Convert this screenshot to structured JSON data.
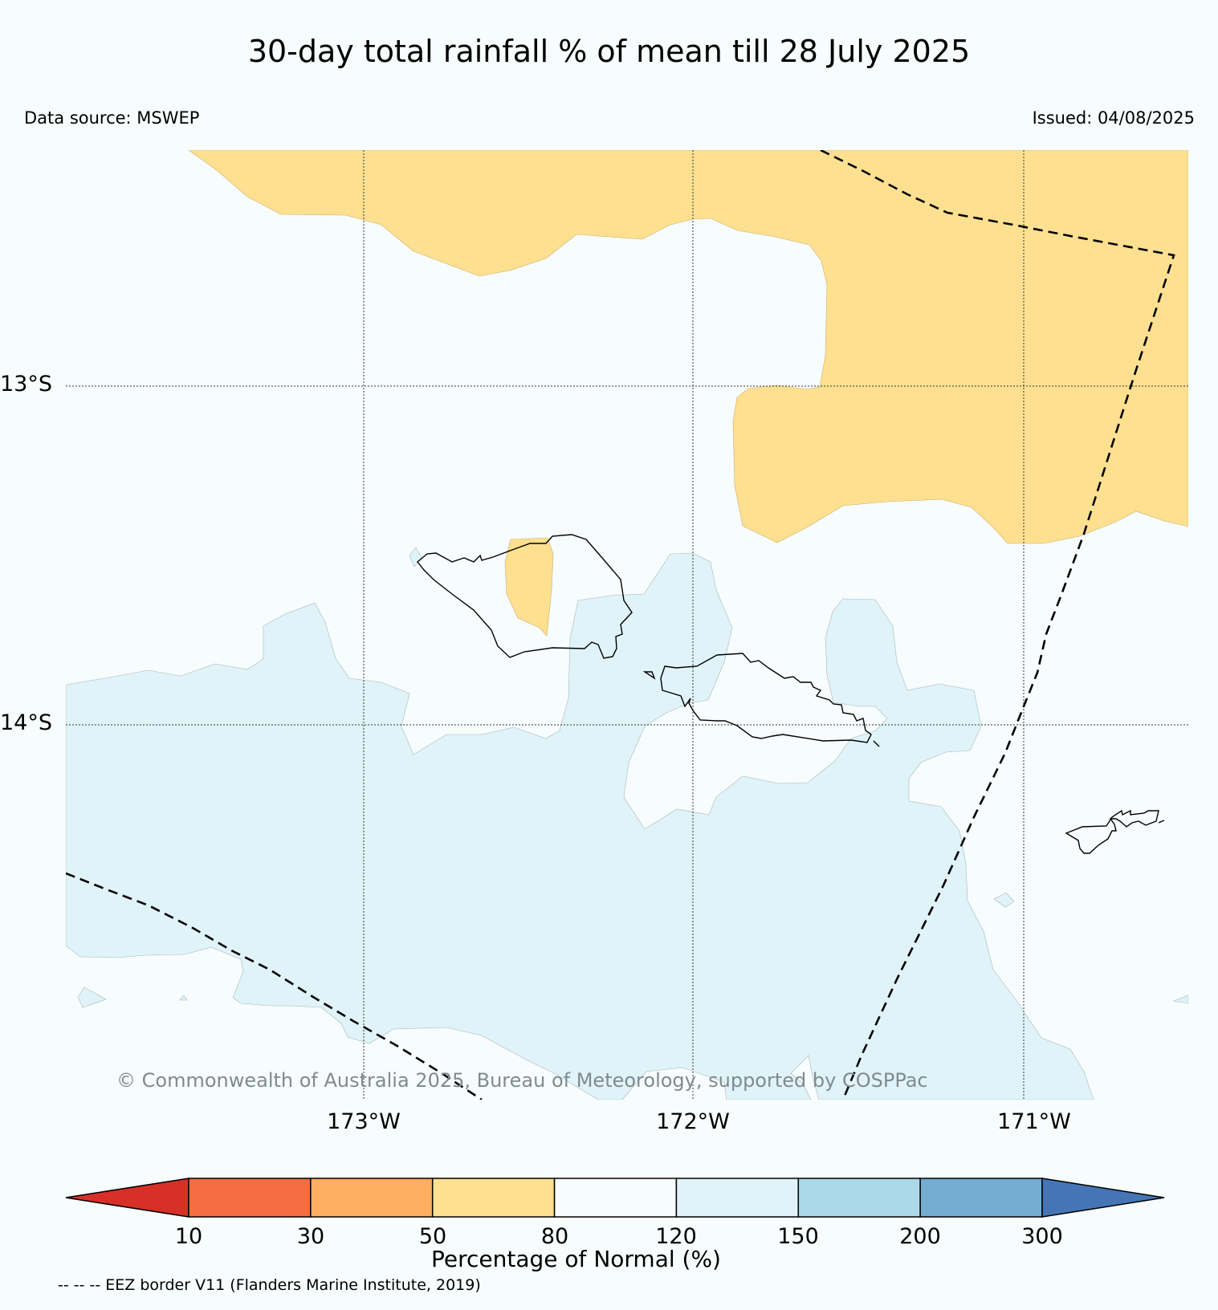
{
  "title": "30-day total rainfall % of mean till 28 July 2025",
  "data_source": "Data source: MSWEP",
  "issued": "Issued: 04/08/2025",
  "copyright": "© Commonwealth of Australia 2025, Bureau of Meteorology, supported by COSPPac",
  "map": {
    "latitude_labels": [
      "13°S",
      "14°S"
    ],
    "longitude_labels": [
      "173°W",
      "172°W",
      "171°W"
    ]
  },
  "colorbar": {
    "title": "Percentage of Normal (%)",
    "ticks": [
      "10",
      "30",
      "50",
      "80",
      "120",
      "150",
      "200",
      "300"
    ],
    "colors": [
      "#d73027",
      "#f46d43",
      "#fdae61",
      "#fee090",
      "#f7fcfd",
      "#e0f3f8",
      "#abd9e9",
      "#74add1",
      "#4575b4"
    ]
  },
  "eez_note": "-- -- -- EEZ border V11 (Flanders Marine Institute, 2019)"
}
